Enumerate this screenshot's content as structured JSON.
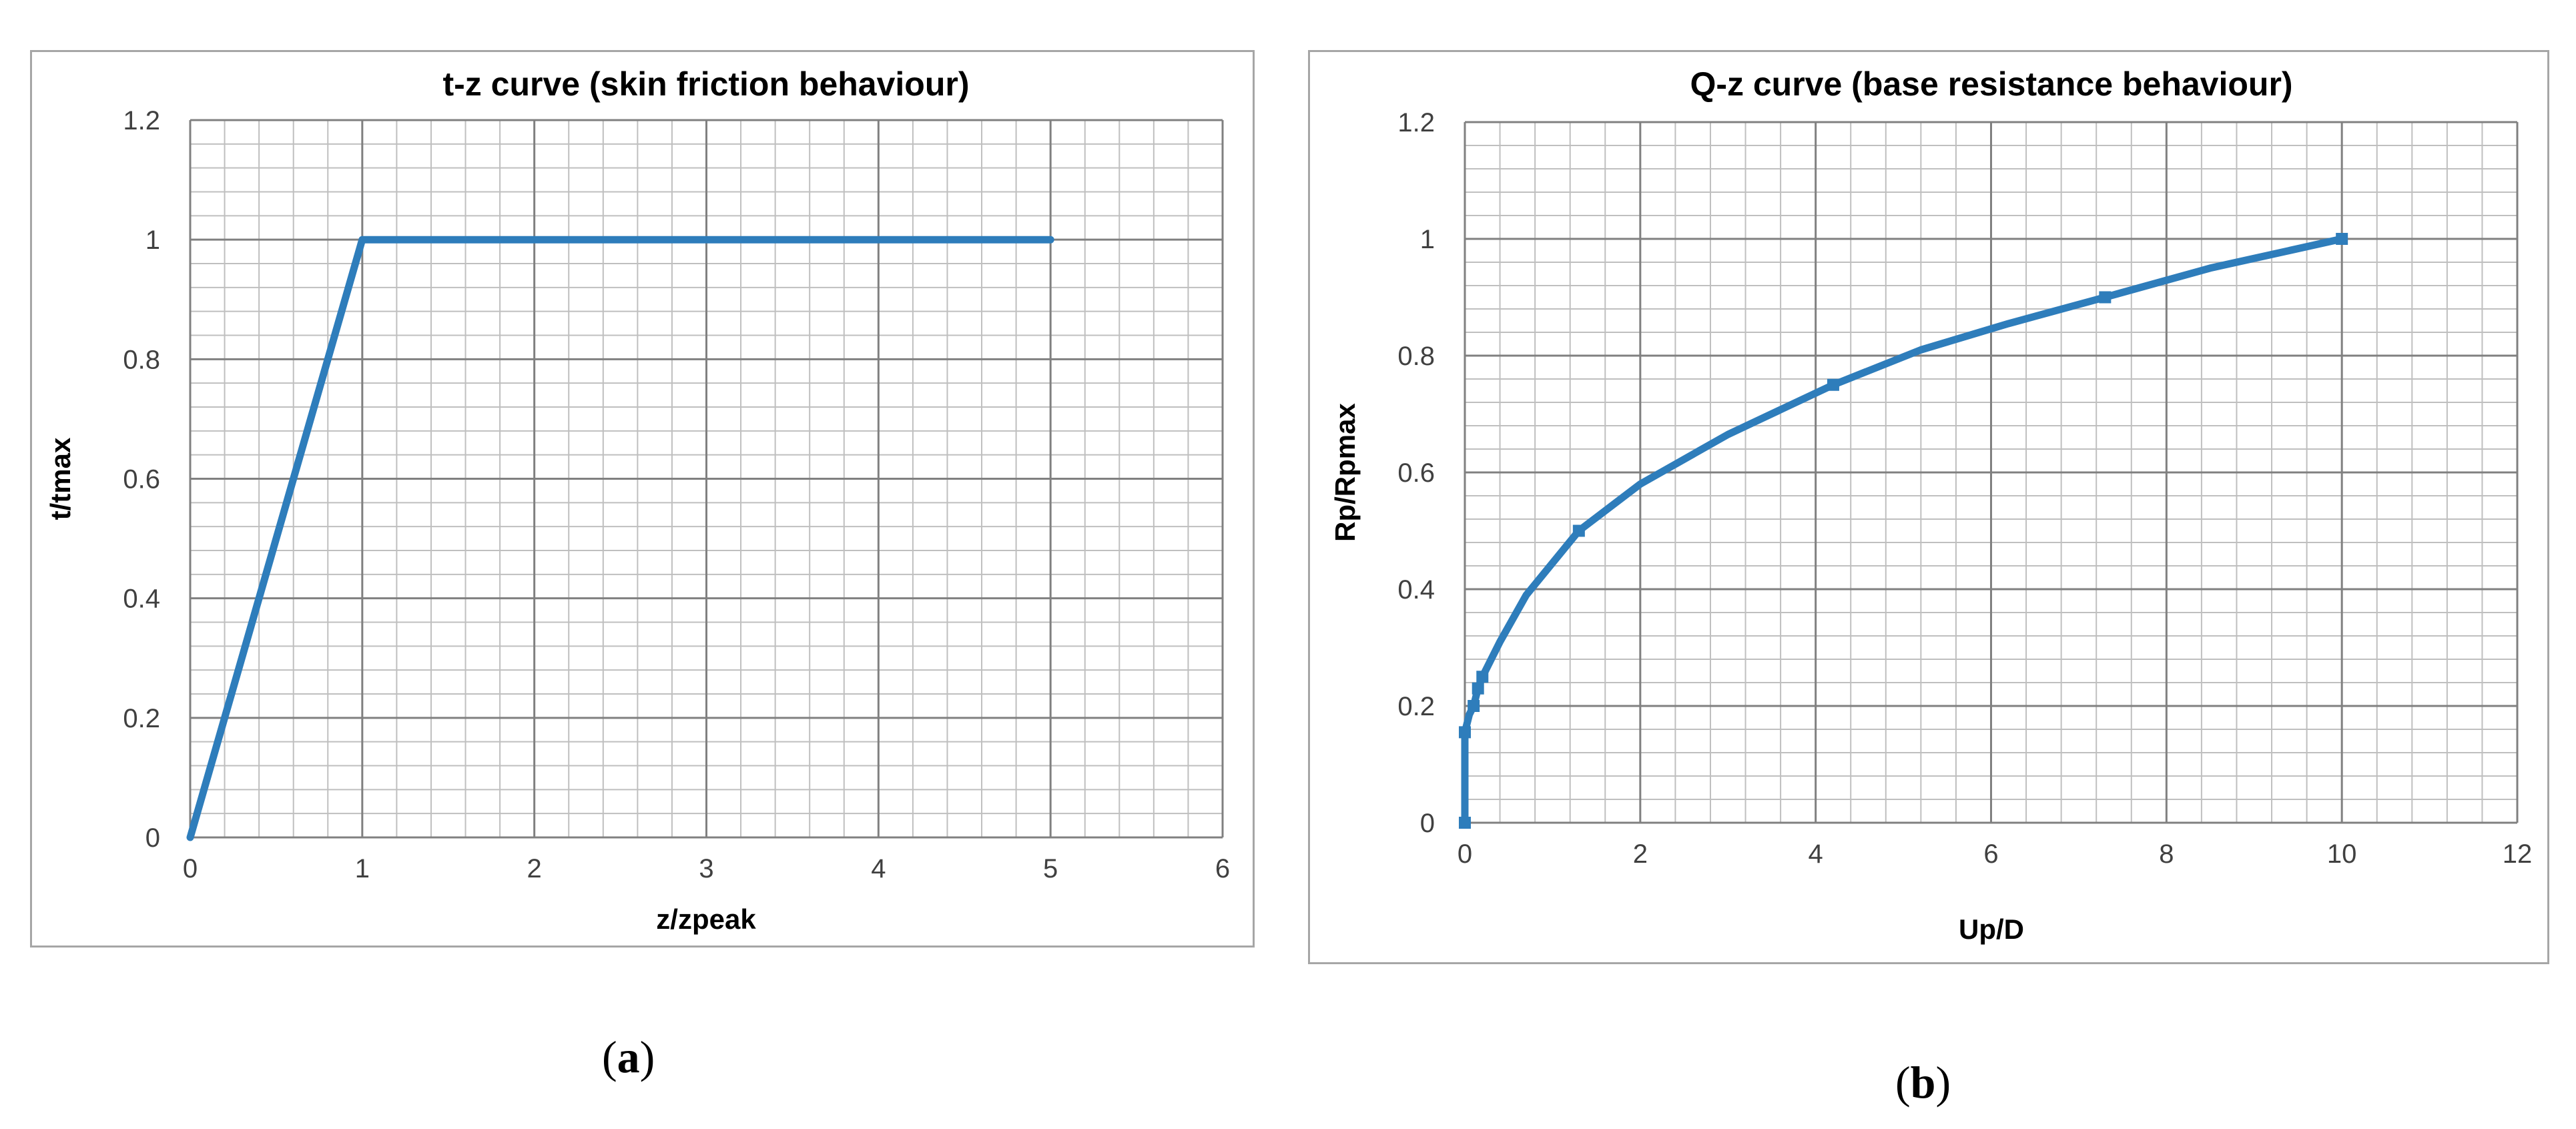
{
  "figure": {
    "panel_a_label": "a",
    "panel_b_label": "b"
  },
  "colors": {
    "series": "#2e7dbb",
    "minor_grid": "#bfbfbf",
    "major_grid": "#808080",
    "axis_text": "#404040",
    "frame": "#a6a6a6"
  },
  "chart_data": [
    {
      "type": "line",
      "title": "t-z curve (skin friction behaviour)",
      "xlabel": "z/zpeak",
      "ylabel": "t/tmax",
      "xlim": [
        0,
        6
      ],
      "ylim": [
        0,
        1.2
      ],
      "xticks": [
        "0",
        "1",
        "2",
        "3",
        "4",
        "5",
        "6"
      ],
      "yticks": [
        "0",
        "0.2",
        "0.4",
        "0.6",
        "0.8",
        "1",
        "1.2"
      ],
      "grid": true,
      "legend": "none",
      "series": [
        {
          "x": [
            0,
            1,
            5
          ],
          "y": [
            0,
            1,
            1
          ],
          "markers": false
        }
      ]
    },
    {
      "type": "line",
      "title": "Q-z curve (base resistance behaviour)",
      "xlabel": "Up/D",
      "ylabel": "Rp/Rpmax",
      "xlim": [
        0,
        12
      ],
      "ylim": [
        0,
        1.2
      ],
      "xticks": [
        "0",
        "2",
        "4",
        "6",
        "8",
        "10",
        "12"
      ],
      "yticks": [
        "0",
        "0.2",
        "0.4",
        "0.6",
        "0.8",
        "1",
        "1.2"
      ],
      "grid": true,
      "legend": "none",
      "series": [
        {
          "x": [
            0,
            0.0,
            0.05,
            0.1,
            0.15,
            0.2,
            0.4,
            0.7,
            1.3,
            2.0,
            3.0,
            4.2,
            5.2,
            6.2,
            7.3,
            8.5,
            10
          ],
          "y": [
            0,
            0.155,
            0.185,
            0.2,
            0.23,
            0.25,
            0.31,
            0.39,
            0.5,
            0.58,
            0.665,
            0.75,
            0.81,
            0.855,
            0.9,
            0.95,
            1.0
          ],
          "markers_at": [
            0,
            1,
            3,
            4,
            5,
            8,
            11,
            14,
            16
          ]
        }
      ]
    }
  ]
}
